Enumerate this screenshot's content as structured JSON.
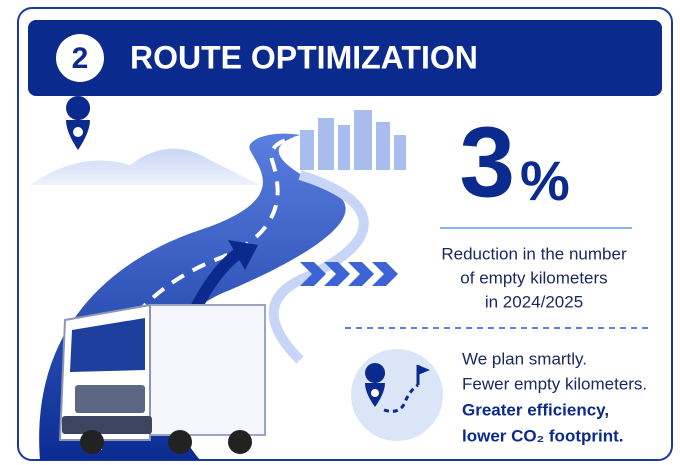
{
  "header": {
    "step": "2",
    "title": "ROUTE OPTIMIZATION"
  },
  "stat": {
    "number": "3",
    "unit": "%",
    "description": [
      "Reduction in the number",
      "of empty kilometers",
      "in 2024/2025"
    ]
  },
  "benefits": [
    "We plan smartly.",
    "Fewer empty kilometers.",
    "Greater efficiency,",
    "lower CO₂ footprint."
  ]
}
